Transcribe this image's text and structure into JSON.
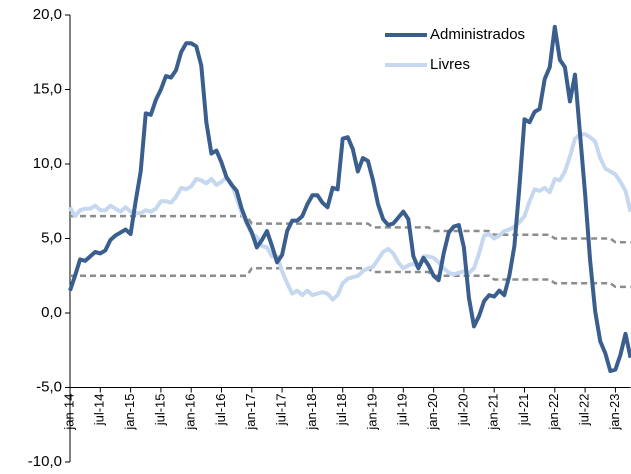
{
  "chart_data": {
    "type": "line",
    "categories": [
      "jan-14",
      null,
      null,
      null,
      null,
      null,
      "jul-14",
      null,
      null,
      null,
      null,
      null,
      "jan-15",
      null,
      null,
      null,
      null,
      null,
      "jul-15",
      null,
      null,
      null,
      null,
      null,
      "jan-16",
      null,
      null,
      null,
      null,
      null,
      "jul-16",
      null,
      null,
      null,
      null,
      null,
      "jan-17",
      null,
      null,
      null,
      null,
      null,
      "jul-17",
      null,
      null,
      null,
      null,
      null,
      "jan-18",
      null,
      null,
      null,
      null,
      null,
      "jul-18",
      null,
      null,
      null,
      null,
      null,
      "jan-19",
      null,
      null,
      null,
      null,
      null,
      "jul-19",
      null,
      null,
      null,
      null,
      null,
      "jan-20",
      null,
      null,
      null,
      null,
      null,
      "jul-20",
      null,
      null,
      null,
      null,
      null,
      "jan-21",
      null,
      null,
      null,
      null,
      null,
      "jul-21",
      null,
      null,
      null,
      null,
      null,
      "jan-22",
      null,
      null,
      null,
      null,
      null,
      "jul-22",
      null,
      null,
      null,
      null,
      null,
      "jan-23",
      null,
      null,
      null
    ],
    "series": [
      {
        "name": "Administrados",
        "color": "#3a5f8f",
        "width": 4,
        "values": [
          1.5,
          2.5,
          3.6,
          3.5,
          3.8,
          4.1,
          4.0,
          4.2,
          4.9,
          5.2,
          5.4,
          5.6,
          5.3,
          7.5,
          9.5,
          13.4,
          13.3,
          14.3,
          15.0,
          15.9,
          15.8,
          16.3,
          17.5,
          18.1,
          18.1,
          17.9,
          16.6,
          12.8,
          10.7,
          10.9,
          10.1,
          9.1,
          8.6,
          8.2,
          7.0,
          6.1,
          5.4,
          4.4,
          4.9,
          5.5,
          4.5,
          3.4,
          3.9,
          5.5,
          6.2,
          6.2,
          6.5,
          7.3,
          7.9,
          7.9,
          7.4,
          7.1,
          8.4,
          8.3,
          11.7,
          11.8,
          11.0,
          9.5,
          10.4,
          10.2,
          8.9,
          7.3,
          6.3,
          5.9,
          6.0,
          6.4,
          6.8,
          6.3,
          3.8,
          3.0,
          3.7,
          3.2,
          2.5,
          2.2,
          4.0,
          5.4,
          5.8,
          5.9,
          4.4,
          1.0,
          -0.9,
          -0.2,
          0.8,
          1.2,
          1.1,
          1.5,
          1.2,
          2.5,
          4.5,
          8.5,
          13.0,
          12.8,
          13.5,
          13.7,
          15.7,
          16.5,
          19.2,
          17.0,
          16.5,
          14.2,
          16.0,
          12.0,
          8.0,
          3.5,
          0.1,
          -1.9,
          -2.7,
          -3.9,
          -3.8,
          -2.8,
          -1.4,
          -3.0
        ]
      },
      {
        "name": "Livres",
        "color": "#c5d8ef",
        "width": 4,
        "values": [
          7.1,
          6.5,
          6.9,
          7.0,
          7.0,
          7.2,
          6.9,
          6.9,
          7.2,
          7.0,
          6.8,
          7.1,
          6.8,
          6.7,
          6.7,
          6.9,
          6.8,
          7.0,
          7.5,
          7.5,
          7.4,
          7.8,
          8.4,
          8.3,
          8.5,
          9.0,
          8.9,
          8.7,
          9.0,
          8.6,
          8.8,
          9.1,
          8.7,
          7.7,
          6.7,
          6.0,
          5.3,
          5.1,
          4.5,
          4.4,
          3.8,
          3.8,
          2.8,
          2.0,
          1.3,
          1.5,
          1.2,
          1.5,
          1.2,
          1.3,
          1.4,
          1.3,
          0.9,
          1.2,
          2.0,
          2.3,
          2.4,
          2.5,
          2.8,
          3.0,
          3.1,
          3.6,
          4.1,
          4.3,
          4.0,
          3.4,
          3.0,
          3.2,
          3.3,
          3.1,
          3.8,
          3.8,
          3.7,
          3.4,
          3.0,
          2.7,
          2.6,
          2.7,
          2.8,
          2.7,
          3.0,
          4.0,
          5.2,
          5.3,
          5.0,
          5.2,
          5.5,
          5.6,
          5.8,
          6.1,
          6.5,
          7.5,
          8.3,
          8.2,
          8.4,
          8.1,
          9.0,
          8.9,
          9.5,
          10.5,
          11.7,
          12.0,
          12.0,
          11.8,
          11.5,
          10.4,
          9.7,
          9.5,
          9.3,
          8.8,
          8.2,
          6.8
        ]
      },
      {
        "color": "#8c8c8c",
        "width": 2.5,
        "dashed": true,
        "values": [
          6.5,
          6.5,
          6.5,
          6.5,
          6.5,
          6.5,
          6.5,
          6.5,
          6.5,
          6.5,
          6.5,
          6.5,
          6.5,
          6.5,
          6.5,
          6.5,
          6.5,
          6.5,
          6.5,
          6.5,
          6.5,
          6.5,
          6.5,
          6.5,
          6.5,
          6.5,
          6.5,
          6.5,
          6.5,
          6.5,
          6.5,
          6.5,
          6.5,
          6.5,
          6.5,
          6.5,
          6.0,
          6.0,
          6.0,
          6.0,
          6.0,
          6.0,
          6.0,
          6.0,
          6.0,
          6.0,
          6.0,
          6.0,
          6.0,
          6.0,
          6.0,
          6.0,
          6.0,
          6.0,
          6.0,
          6.0,
          6.0,
          6.0,
          6.0,
          6.0,
          5.75,
          5.75,
          5.75,
          5.75,
          5.75,
          5.75,
          5.75,
          5.75,
          5.75,
          5.75,
          5.75,
          5.75,
          5.5,
          5.5,
          5.5,
          5.5,
          5.5,
          5.5,
          5.5,
          5.5,
          5.5,
          5.5,
          5.5,
          5.5,
          5.25,
          5.25,
          5.25,
          5.25,
          5.25,
          5.25,
          5.25,
          5.25,
          5.25,
          5.25,
          5.25,
          5.25,
          5.0,
          5.0,
          5.0,
          5.0,
          5.0,
          5.0,
          5.0,
          5.0,
          5.0,
          5.0,
          5.0,
          5.0,
          4.75,
          4.75,
          4.75,
          4.75
        ]
      },
      {
        "color": "#8c8c8c",
        "width": 2.5,
        "dashed": true,
        "values": [
          2.5,
          2.5,
          2.5,
          2.5,
          2.5,
          2.5,
          2.5,
          2.5,
          2.5,
          2.5,
          2.5,
          2.5,
          2.5,
          2.5,
          2.5,
          2.5,
          2.5,
          2.5,
          2.5,
          2.5,
          2.5,
          2.5,
          2.5,
          2.5,
          2.5,
          2.5,
          2.5,
          2.5,
          2.5,
          2.5,
          2.5,
          2.5,
          2.5,
          2.5,
          2.5,
          2.5,
          3.0,
          3.0,
          3.0,
          3.0,
          3.0,
          3.0,
          3.0,
          3.0,
          3.0,
          3.0,
          3.0,
          3.0,
          3.0,
          3.0,
          3.0,
          3.0,
          3.0,
          3.0,
          3.0,
          3.0,
          3.0,
          3.0,
          3.0,
          3.0,
          2.75,
          2.75,
          2.75,
          2.75,
          2.75,
          2.75,
          2.75,
          2.75,
          2.75,
          2.75,
          2.75,
          2.75,
          2.5,
          2.5,
          2.5,
          2.5,
          2.5,
          2.5,
          2.5,
          2.5,
          2.5,
          2.5,
          2.5,
          2.5,
          2.25,
          2.25,
          2.25,
          2.25,
          2.25,
          2.25,
          2.25,
          2.25,
          2.25,
          2.25,
          2.25,
          2.25,
          2.0,
          2.0,
          2.0,
          2.0,
          2.0,
          2.0,
          2.0,
          2.0,
          2.0,
          2.0,
          2.0,
          2.0,
          1.75,
          1.75,
          1.75,
          1.75
        ]
      }
    ],
    "ylim": [
      -10,
      20
    ],
    "yticks": [
      {
        "value": -10,
        "label": "-10,0"
      },
      {
        "value": -5,
        "label": "-5,0"
      },
      {
        "value": 0,
        "label": "0,0"
      },
      {
        "value": 5,
        "label": "5,0"
      },
      {
        "value": 10,
        "label": "10,0"
      },
      {
        "value": 15,
        "label": "15,0"
      },
      {
        "value": 20,
        "label": "20,0"
      }
    ],
    "x_axis_crosses": -5,
    "grid": false,
    "legend": "top-right"
  }
}
